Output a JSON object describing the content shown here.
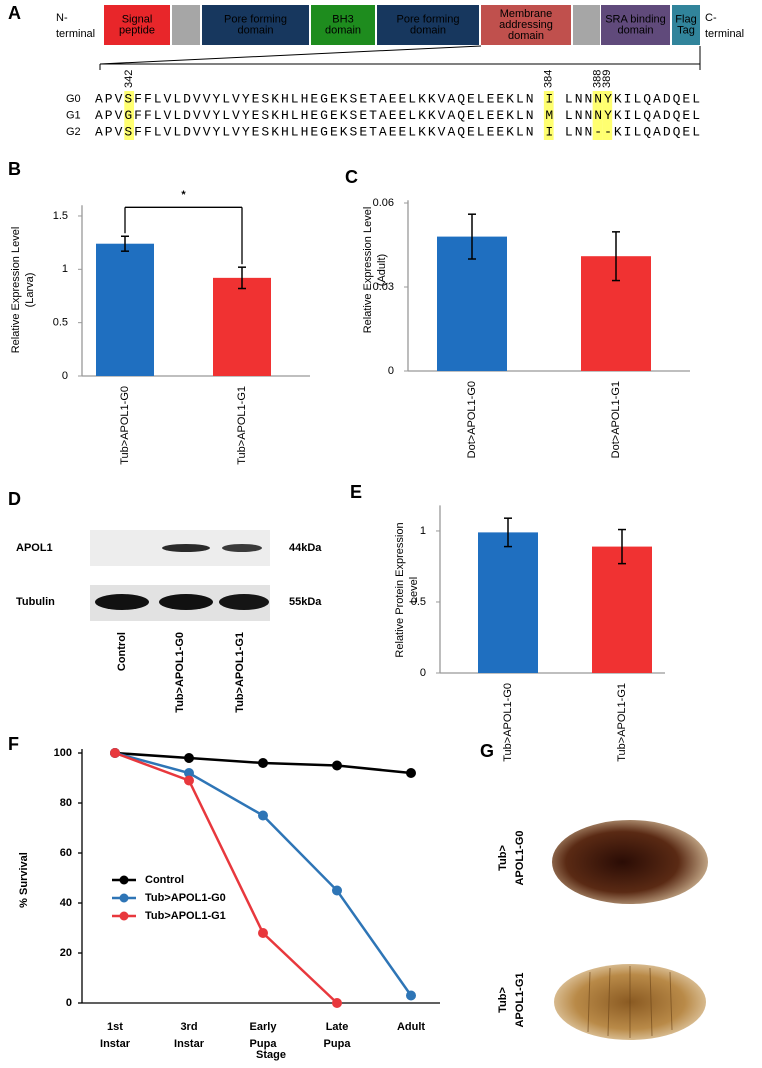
{
  "panel_a": {
    "label": "A",
    "n_terminal": [
      "N-",
      "terminal"
    ],
    "c_terminal": [
      "C-",
      "terminal"
    ],
    "domains": [
      {
        "lines": [
          "Signal",
          "peptide"
        ],
        "color": "#e8262a"
      },
      {
        "color": "#a6a6a6"
      },
      {
        "lines": [
          "Pore forming",
          "domain"
        ],
        "color": "#17375e"
      },
      {
        "lines": [
          "BH3",
          "domain"
        ],
        "color": "#1e8c1e"
      },
      {
        "lines": [
          "Pore forming",
          "domain"
        ],
        "color": "#17375e"
      },
      {
        "lines": [
          "Membrane",
          "addressing",
          "domain"
        ],
        "color": "#c0504d"
      },
      {
        "color": "#a6a6a6"
      },
      {
        "lines": [
          "SRA binding",
          "domain"
        ],
        "color": "#604a7b"
      },
      {
        "lines": [
          "Flag",
          "Tag"
        ],
        "color": "#31849b"
      }
    ],
    "positions": [
      "342",
      "384",
      "388",
      "389"
    ],
    "highlight_color": "#ffff70",
    "sequences": [
      {
        "name": "G0",
        "residues": "APVSFFLVLDVVYLVYESKHLHEGEKSETAEELKKVAQELEEKLN I LNNNYKILQADQEL"
      },
      {
        "name": "G1",
        "residues": "APVGFFLVLDVVYLVYESKHLHEGEKSETAEELKKVAQELEEKLN M LNNNYKILQADQEL"
      },
      {
        "name": "G2",
        "residues": "APVSFFLVLDVVYLVYESKHLHEGEKSETAEELKKVAQELEEKLN I LNN--KILQADQEL"
      }
    ]
  },
  "chart_data": [
    {
      "type": "bar",
      "panel_label": "B",
      "ylabel": [
        "Relative Expression Level",
        "(Larva)"
      ],
      "categories": [
        "Tub>APOL1-G0",
        "Tub>APOL1-G1"
      ],
      "values": [
        1.24,
        0.92
      ],
      "errors": [
        0.07,
        0.1
      ],
      "colors": [
        "#1f6fc0",
        "#f03232"
      ],
      "ylim": [
        0,
        1.6
      ],
      "yticks": [
        0,
        0.5,
        1,
        1.5
      ],
      "significance": "*"
    },
    {
      "type": "bar",
      "panel_label": "C",
      "ylabel": [
        "Relative Expression Level",
        "(Adult)"
      ],
      "categories": [
        "Dot>APOL1-G0",
        "Dot>APOL1-G1"
      ],
      "values": [
        0.048,
        0.041
      ],
      "errors": [
        0.008,
        0.0087
      ],
      "colors": [
        "#1f6fc0",
        "#f03232"
      ],
      "ylim": [
        0,
        0.061
      ],
      "yticks": [
        0,
        0.03,
        0.06
      ]
    },
    {
      "type": "bar",
      "panel_label": "E",
      "ylabel": [
        "Relative Protein Expression",
        "Level"
      ],
      "categories": [
        "Tub>APOL1-G0",
        "Tub>APOL1-G1"
      ],
      "values": [
        0.99,
        0.89
      ],
      "errors": [
        0.1,
        0.12
      ],
      "colors": [
        "#1f6fc0",
        "#f03232"
      ],
      "ylim": [
        0,
        1.18
      ],
      "yticks": [
        0,
        0.5,
        1
      ]
    },
    {
      "type": "line",
      "panel_label": "F",
      "ylabel": "% Survival",
      "xlabel": "Stage",
      "categories": [
        "1st Instar",
        "3rd Instar",
        "Early Pupa",
        "Late Pupa",
        "Adult"
      ],
      "series": [
        {
          "name": "Control",
          "color": "#000000",
          "values": [
            100,
            98,
            96,
            95,
            92
          ]
        },
        {
          "name": "Tub>APOL1-G0",
          "color": "#2e75b6",
          "values": [
            100,
            92,
            75,
            45,
            3
          ]
        },
        {
          "name": "Tub>APOL1-G1",
          "color": "#e8383d",
          "values": [
            100,
            89,
            28,
            0,
            null
          ]
        }
      ],
      "ylim": [
        0,
        100
      ],
      "yticks": [
        0,
        20,
        40,
        60,
        80,
        100
      ],
      "legend": "lower left"
    }
  ],
  "panel_d": {
    "label": "D",
    "rows": [
      {
        "name": "APOL1",
        "size": "44kDa"
      },
      {
        "name": "Tubulin",
        "size": "55kDa"
      }
    ],
    "lanes": [
      "Control",
      "Tub>APOL1-G0",
      "Tub>APOL1-G1"
    ]
  },
  "panel_g": {
    "label": "G",
    "rows": [
      [
        "Tub>",
        "APOL1-G0"
      ],
      [
        "Tub>",
        "APOL1-G1"
      ]
    ]
  }
}
